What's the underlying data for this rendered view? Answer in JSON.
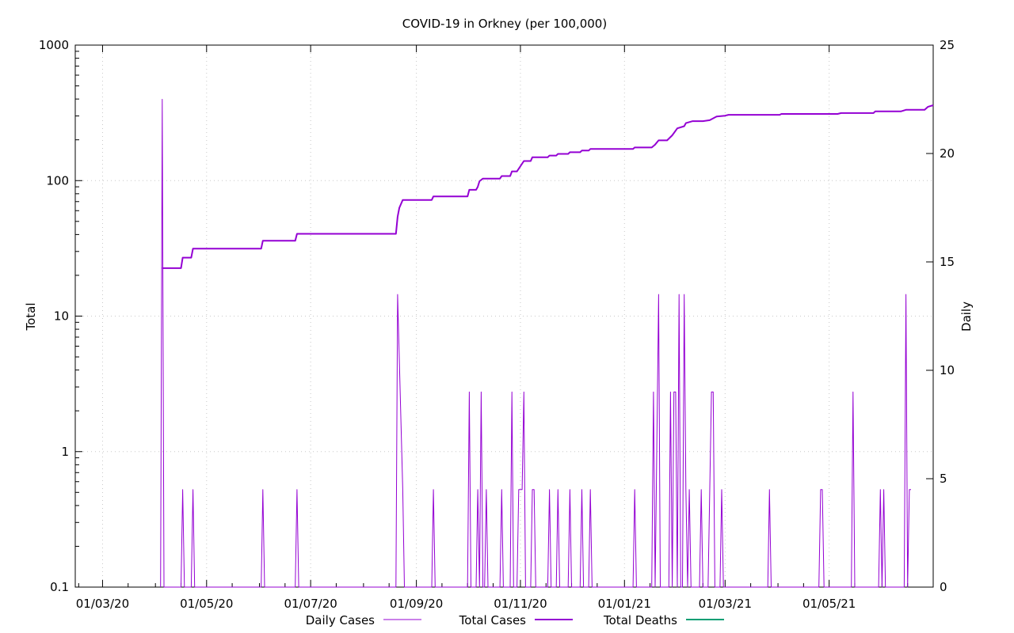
{
  "chart_data": {
    "type": "line",
    "title": "COVID-19 in Orkney (per 100,000)",
    "ylabel_left": "Total",
    "ylabel_right": "Daily",
    "y_left_scale": "log",
    "y_left_range": [
      0.1,
      1000
    ],
    "y_left_ticks": [
      "0.1",
      "1",
      "10",
      "100",
      "1000"
    ],
    "y_right_range": [
      0,
      25
    ],
    "y_right_ticks": [
      "0",
      "5",
      "10",
      "15",
      "20",
      "25"
    ],
    "x_range": [
      "2020-02-14",
      "2021-07-01"
    ],
    "x_ticks": [
      {
        "date": "2020-03-01",
        "label": "01/03/20"
      },
      {
        "date": "2020-05-01",
        "label": "01/05/20"
      },
      {
        "date": "2020-07-01",
        "label": "01/07/20"
      },
      {
        "date": "2020-09-01",
        "label": "01/09/20"
      },
      {
        "date": "2020-11-01",
        "label": "01/11/20"
      },
      {
        "date": "2021-01-01",
        "label": "01/01/21"
      },
      {
        "date": "2021-03-01",
        "label": "01/03/21"
      },
      {
        "date": "2021-05-01",
        "label": "01/05/21"
      }
    ],
    "grid": true,
    "legend_position": "bottom",
    "legend": [
      "Daily Cases",
      "Total Cases",
      "Total Deaths"
    ],
    "colors": {
      "daily": "#9400d3",
      "total": "#9400d3",
      "deaths": "#009e73"
    },
    "series": [
      {
        "name": "Total Cases",
        "axis": "left",
        "points": [
          [
            "2020-04-05",
            22.6
          ],
          [
            "2020-04-16",
            22.6
          ],
          [
            "2020-04-17",
            27
          ],
          [
            "2020-04-22",
            27
          ],
          [
            "2020-04-23",
            31.5
          ],
          [
            "2020-06-02",
            31.5
          ],
          [
            "2020-06-03",
            36
          ],
          [
            "2020-06-22",
            36
          ],
          [
            "2020-06-23",
            40.5
          ],
          [
            "2020-08-20",
            40.5
          ],
          [
            "2020-08-21",
            54
          ],
          [
            "2020-08-22",
            63
          ],
          [
            "2020-08-24",
            72
          ],
          [
            "2020-09-10",
            72
          ],
          [
            "2020-09-11",
            76.5
          ],
          [
            "2020-10-01",
            76.5
          ],
          [
            "2020-10-02",
            85.5
          ],
          [
            "2020-10-06",
            85.5
          ],
          [
            "2020-10-07",
            90
          ],
          [
            "2020-10-08",
            99
          ],
          [
            "2020-10-10",
            103.5
          ],
          [
            "2020-10-20",
            103.5
          ],
          [
            "2020-10-21",
            108
          ],
          [
            "2020-10-26",
            108
          ],
          [
            "2020-10-27",
            117
          ],
          [
            "2020-10-30",
            117
          ],
          [
            "2020-11-03",
            139.5
          ],
          [
            "2020-11-07",
            139.5
          ],
          [
            "2020-11-08",
            148.5
          ],
          [
            "2020-11-17",
            148.5
          ],
          [
            "2020-11-18",
            153
          ],
          [
            "2020-11-22",
            153
          ],
          [
            "2020-11-23",
            157.5
          ],
          [
            "2020-11-29",
            157.5
          ],
          [
            "2020-11-30",
            162
          ],
          [
            "2020-12-06",
            162
          ],
          [
            "2020-12-07",
            166.5
          ],
          [
            "2020-12-11",
            166.5
          ],
          [
            "2020-12-12",
            171
          ],
          [
            "2020-12-31",
            171
          ],
          [
            "2021-01-06",
            171
          ],
          [
            "2021-01-07",
            175.5
          ],
          [
            "2021-01-17",
            175.5
          ],
          [
            "2021-01-19",
            184.5
          ],
          [
            "2021-01-21",
            198
          ],
          [
            "2021-01-26",
            198
          ],
          [
            "2021-01-29",
            216
          ],
          [
            "2021-02-01",
            243
          ],
          [
            "2021-02-05",
            252
          ],
          [
            "2021-02-06",
            265.5
          ],
          [
            "2021-02-10",
            274.5
          ],
          [
            "2021-02-16",
            274.5
          ],
          [
            "2021-02-20",
            279
          ],
          [
            "2021-02-24",
            297
          ],
          [
            "2021-03-01",
            301.5
          ],
          [
            "2021-03-03",
            306
          ],
          [
            "2021-04-02",
            306
          ],
          [
            "2021-04-03",
            310.5
          ],
          [
            "2021-04-10",
            310.5
          ],
          [
            "2021-05-06",
            310.5
          ],
          [
            "2021-05-08",
            315
          ],
          [
            "2021-05-10",
            315
          ],
          [
            "2021-05-27",
            315
          ],
          [
            "2021-05-28",
            324
          ],
          [
            "2021-06-12",
            324
          ],
          [
            "2021-06-15",
            333
          ],
          [
            "2021-06-26",
            333
          ],
          [
            "2021-06-28",
            351
          ],
          [
            "2021-07-01",
            360
          ]
        ]
      },
      {
        "name": "Daily Cases",
        "axis": "right",
        "points": [
          [
            "2020-04-04",
            0
          ],
          [
            "2020-04-05",
            22.5
          ],
          [
            "2020-04-06",
            0
          ],
          [
            "2020-04-16",
            0
          ],
          [
            "2020-04-17",
            4.5
          ],
          [
            "2020-04-18",
            0
          ],
          [
            "2020-04-22",
            0
          ],
          [
            "2020-04-23",
            4.5
          ],
          [
            "2020-04-24",
            0
          ],
          [
            "2020-06-02",
            0
          ],
          [
            "2020-06-03",
            4.5
          ],
          [
            "2020-06-04",
            0
          ],
          [
            "2020-06-22",
            0
          ],
          [
            "2020-06-23",
            4.5
          ],
          [
            "2020-06-24",
            0
          ],
          [
            "2020-08-20",
            0
          ],
          [
            "2020-08-21",
            13.5
          ],
          [
            "2020-08-24",
            4.5
          ],
          [
            "2020-08-25",
            0
          ],
          [
            "2020-09-10",
            0
          ],
          [
            "2020-09-11",
            4.5
          ],
          [
            "2020-09-12",
            0
          ],
          [
            "2020-10-01",
            0
          ],
          [
            "2020-10-02",
            9
          ],
          [
            "2020-10-03",
            0
          ],
          [
            "2020-10-06",
            0
          ],
          [
            "2020-10-07",
            4.5
          ],
          [
            "2020-10-08",
            0
          ],
          [
            "2020-10-09",
            9
          ],
          [
            "2020-10-10",
            0
          ],
          [
            "2020-10-11",
            0
          ],
          [
            "2020-10-12",
            4.5
          ],
          [
            "2020-10-13",
            0
          ],
          [
            "2020-10-20",
            0
          ],
          [
            "2020-10-21",
            4.5
          ],
          [
            "2020-10-22",
            0
          ],
          [
            "2020-10-26",
            0
          ],
          [
            "2020-10-27",
            9
          ],
          [
            "2020-10-28",
            0
          ],
          [
            "2020-10-30",
            0
          ],
          [
            "2020-10-31",
            4.5
          ],
          [
            "2020-11-02",
            4.5
          ],
          [
            "2020-11-03",
            9
          ],
          [
            "2020-11-04",
            0
          ],
          [
            "2020-11-07",
            0
          ],
          [
            "2020-11-08",
            4.5
          ],
          [
            "2020-11-09",
            4.5
          ],
          [
            "2020-11-10",
            0
          ],
          [
            "2020-11-17",
            0
          ],
          [
            "2020-11-18",
            4.5
          ],
          [
            "2020-11-19",
            0
          ],
          [
            "2020-11-22",
            0
          ],
          [
            "2020-11-23",
            4.5
          ],
          [
            "2020-11-24",
            0
          ],
          [
            "2020-11-29",
            0
          ],
          [
            "2020-11-30",
            4.5
          ],
          [
            "2020-12-01",
            0
          ],
          [
            "2020-12-06",
            0
          ],
          [
            "2020-12-07",
            4.5
          ],
          [
            "2020-12-08",
            0
          ],
          [
            "2020-12-11",
            0
          ],
          [
            "2020-12-12",
            4.5
          ],
          [
            "2020-12-13",
            0
          ],
          [
            "2021-01-06",
            0
          ],
          [
            "2021-01-07",
            4.5
          ],
          [
            "2021-01-08",
            0
          ],
          [
            "2021-01-17",
            0
          ],
          [
            "2021-01-18",
            9
          ],
          [
            "2021-01-19",
            0
          ],
          [
            "2021-01-21",
            13.5
          ],
          [
            "2021-01-22",
            0
          ],
          [
            "2021-01-27",
            0
          ],
          [
            "2021-01-28",
            9
          ],
          [
            "2021-01-29",
            0
          ],
          [
            "2021-01-30",
            9
          ],
          [
            "2021-01-31",
            9
          ],
          [
            "2021-02-01",
            0
          ],
          [
            "2021-02-02",
            13.5
          ],
          [
            "2021-02-03",
            0
          ],
          [
            "2021-02-04",
            0
          ],
          [
            "2021-02-05",
            13.5
          ],
          [
            "2021-02-06",
            4.5
          ],
          [
            "2021-02-07",
            0
          ],
          [
            "2021-02-08",
            4.5
          ],
          [
            "2021-02-09",
            0
          ],
          [
            "2021-02-14",
            0
          ],
          [
            "2021-02-15",
            4.5
          ],
          [
            "2021-02-16",
            0
          ],
          [
            "2021-02-19",
            0
          ],
          [
            "2021-02-21",
            9
          ],
          [
            "2021-02-22",
            9
          ],
          [
            "2021-02-23",
            0
          ],
          [
            "2021-02-26",
            0
          ],
          [
            "2021-02-27",
            4.5
          ],
          [
            "2021-02-28",
            0
          ],
          [
            "2021-03-26",
            0
          ],
          [
            "2021-03-27",
            4.5
          ],
          [
            "2021-03-28",
            0
          ],
          [
            "2021-04-25",
            0
          ],
          [
            "2021-04-26",
            4.5
          ],
          [
            "2021-04-27",
            4.5
          ],
          [
            "2021-04-28",
            0
          ],
          [
            "2021-05-14",
            0
          ],
          [
            "2021-05-15",
            9
          ],
          [
            "2021-05-16",
            0
          ],
          [
            "2021-05-30",
            0
          ],
          [
            "2021-05-31",
            4.5
          ],
          [
            "2021-06-01",
            0
          ],
          [
            "2021-06-02",
            4.5
          ],
          [
            "2021-06-03",
            0
          ],
          [
            "2021-06-14",
            0
          ],
          [
            "2021-06-15",
            13.5
          ],
          [
            "2021-06-16",
            0
          ],
          [
            "2021-06-16",
            0
          ],
          [
            "2021-06-17",
            4.5
          ],
          [
            "2021-06-18",
            4.5
          ]
        ]
      },
      {
        "name": "Total Deaths",
        "axis": "left",
        "points": []
      }
    ]
  }
}
